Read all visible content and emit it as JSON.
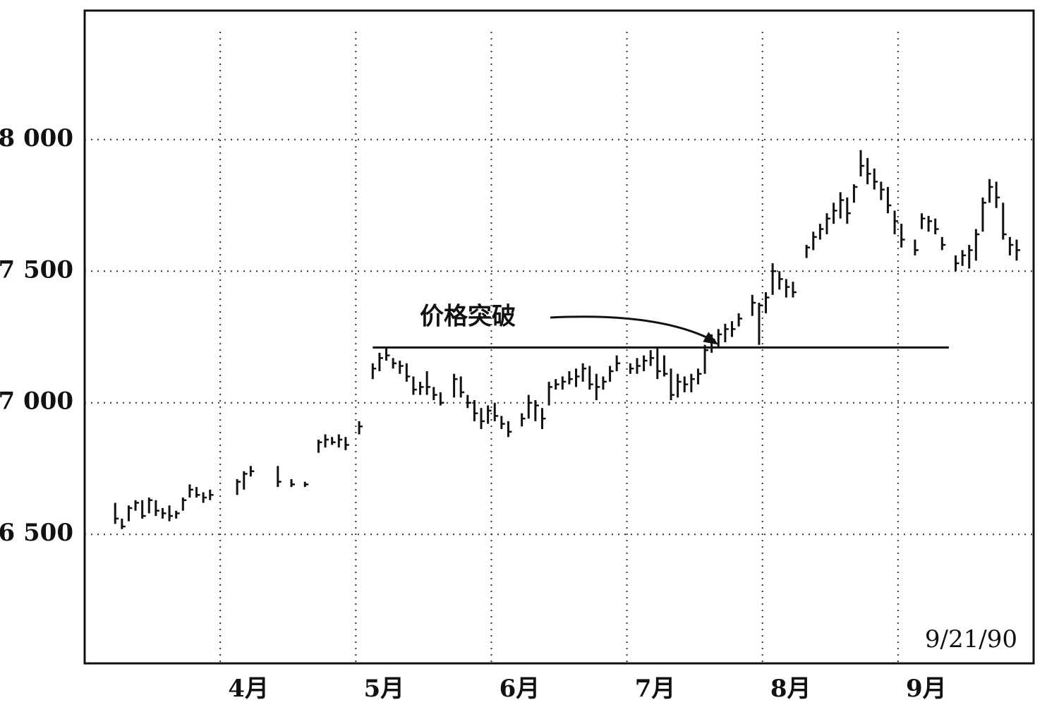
{
  "chart_data": {
    "type": "hlc",
    "annotation": "价格突破",
    "date_note": "9/21/90",
    "resistance": 7210,
    "color": "#111111",
    "grid": true,
    "categories": [
      null,
      null,
      null,
      null,
      null,
      null,
      null,
      null,
      null,
      null,
      null,
      null,
      null,
      null,
      null,
      null,
      null,
      null,
      null,
      null,
      "4月",
      null,
      null,
      null,
      null,
      null,
      null,
      null,
      null,
      null,
      null,
      null,
      null,
      null,
      null,
      null,
      null,
      null,
      null,
      null,
      "5月",
      null,
      null,
      null,
      null,
      null,
      null,
      null,
      null,
      null,
      null,
      null,
      null,
      null,
      null,
      null,
      null,
      null,
      null,
      null,
      "6月",
      null,
      null,
      null,
      null,
      null,
      null,
      null,
      null,
      null,
      null,
      null,
      null,
      null,
      null,
      null,
      null,
      null,
      null,
      null,
      "7月",
      null,
      null,
      null,
      null,
      null,
      null,
      null,
      null,
      null,
      null,
      null,
      null,
      null,
      null,
      null,
      null,
      null,
      null,
      null,
      "8月",
      null,
      null,
      null,
      null,
      null,
      null,
      null,
      null,
      null,
      null,
      null,
      null,
      null,
      null,
      null,
      null,
      null,
      null,
      null,
      "9月",
      null,
      null,
      null,
      null,
      null,
      null,
      null,
      null,
      null,
      null,
      null,
      null,
      null,
      null,
      null,
      null,
      null,
      null,
      null
    ],
    "high": [
      null,
      null,
      null,
      null,
      6620,
      6560,
      6610,
      6630,
      6630,
      6640,
      6630,
      6600,
      6610,
      6590,
      6640,
      6690,
      6680,
      6660,
      6670,
      null,
      null,
      null,
      6710,
      6740,
      6760,
      null,
      null,
      null,
      6760,
      null,
      6710,
      null,
      6700,
      null,
      6860,
      6880,
      6870,
      6880,
      6870,
      null,
      6930,
      null,
      7150,
      7190,
      7210,
      7170,
      7160,
      7150,
      7100,
      7080,
      7120,
      7060,
      7040,
      null,
      7110,
      7100,
      7030,
      7010,
      6980,
      6990,
      7000,
      6950,
      6930,
      null,
      6960,
      7030,
      7010,
      6980,
      7080,
      7090,
      7100,
      7120,
      7130,
      7150,
      7140,
      7110,
      7100,
      7140,
      7180,
      null,
      7150,
      7170,
      7180,
      7200,
      7210,
      7180,
      7130,
      7110,
      7100,
      7110,
      7130,
      7220,
      7260,
      7280,
      7300,
      7310,
      7340,
      null,
      7410,
      7380,
      7420,
      7530,
      7500,
      7470,
      7460,
      null,
      7600,
      7650,
      7680,
      7720,
      7760,
      7800,
      7780,
      7830,
      7960,
      7930,
      7890,
      7840,
      7820,
      7730,
      7680,
      null,
      7620,
      7720,
      7710,
      7700,
      7630,
      null,
      7560,
      7580,
      7600,
      7660,
      7780,
      7850,
      7840,
      7760,
      7630,
      7620,
      null,
      null
    ],
    "low": [
      null,
      null,
      null,
      null,
      6540,
      6520,
      6550,
      6590,
      6560,
      6580,
      6570,
      6560,
      6550,
      6560,
      6590,
      6640,
      6640,
      6620,
      6630,
      null,
      null,
      null,
      6650,
      6670,
      6720,
      null,
      null,
      null,
      6680,
      null,
      6680,
      null,
      6680,
      null,
      6810,
      6830,
      6840,
      6830,
      6820,
      null,
      6880,
      null,
      7090,
      7120,
      7160,
      7130,
      7110,
      7080,
      7030,
      7030,
      7030,
      7010,
      6990,
      null,
      7020,
      7020,
      6980,
      6930,
      6900,
      6920,
      6930,
      6900,
      6870,
      null,
      6910,
      6940,
      6930,
      6900,
      6990,
      7050,
      7050,
      7070,
      7060,
      7080,
      7050,
      7010,
      7050,
      7080,
      7120,
      null,
      7110,
      7110,
      7120,
      7140,
      7090,
      7100,
      7010,
      7020,
      7040,
      7040,
      7070,
      7110,
      7190,
      7210,
      7230,
      7250,
      7290,
      null,
      7330,
      7220,
      7340,
      7410,
      7430,
      7400,
      7400,
      null,
      7550,
      7580,
      7620,
      7640,
      7680,
      7700,
      7680,
      7760,
      7860,
      7830,
      7810,
      7770,
      7720,
      7640,
      7590,
      null,
      7560,
      7660,
      7650,
      7640,
      7580,
      null,
      7500,
      7520,
      7510,
      7540,
      7650,
      7760,
      7740,
      7620,
      7560,
      7540,
      null,
      null
    ],
    "close": [
      null,
      null,
      null,
      null,
      6560,
      6530,
      6600,
      6620,
      6570,
      6630,
      6590,
      6580,
      6570,
      6580,
      6630,
      6670,
      6650,
      6640,
      6650,
      null,
      null,
      null,
      6700,
      6730,
      6740,
      null,
      null,
      null,
      6700,
      null,
      6690,
      null,
      6690,
      null,
      6850,
      6860,
      6850,
      6860,
      6840,
      null,
      6910,
      null,
      7130,
      7170,
      7180,
      7150,
      7140,
      7100,
      7050,
      7060,
      7060,
      7030,
      7000,
      null,
      7090,
      7040,
      7000,
      6960,
      6930,
      6970,
      6950,
      6920,
      6890,
      null,
      6940,
      7000,
      6990,
      6940,
      7060,
      7070,
      7080,
      7090,
      7100,
      7130,
      7070,
      7060,
      7080,
      7120,
      7150,
      null,
      7130,
      7140,
      7160,
      7170,
      7120,
      7110,
      7030,
      7080,
      7070,
      7090,
      7110,
      7200,
      7240,
      7260,
      7280,
      7280,
      7320,
      null,
      7380,
      7370,
      7400,
      7500,
      7470,
      7440,
      7420,
      null,
      7590,
      7630,
      7660,
      7700,
      7730,
      7770,
      7720,
      7820,
      7900,
      7870,
      7840,
      7810,
      7750,
      7690,
      7620,
      null,
      7580,
      7700,
      7690,
      7660,
      7600,
      null,
      7530,
      7560,
      7580,
      7640,
      7760,
      7820,
      7780,
      7640,
      7600,
      7580,
      null,
      null
    ],
    "ylim": [
      6010,
      8490
    ],
    "yticks": [
      {
        "value": 6500,
        "label": "6 500"
      },
      {
        "value": 7000,
        "label": "7 000"
      },
      {
        "value": 7500,
        "label": "7 500"
      },
      {
        "value": 8000,
        "label": "8 000"
      }
    ]
  }
}
